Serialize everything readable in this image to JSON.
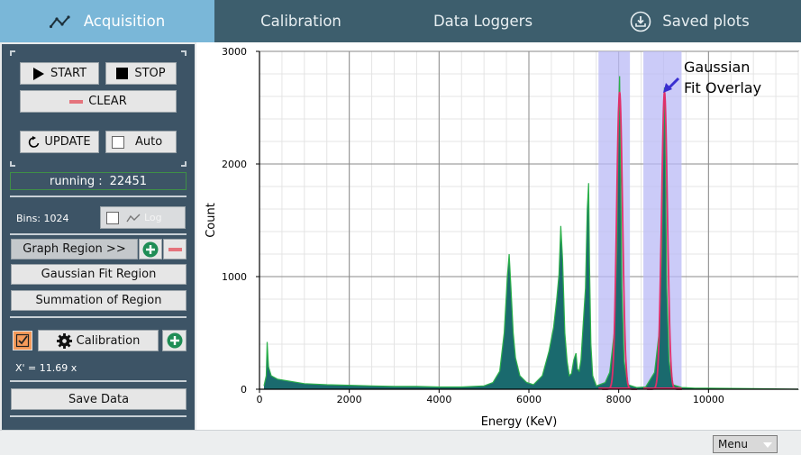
{
  "tabs": [
    {
      "label": "Acquisition",
      "icon": "chart-line-icon",
      "active": true
    },
    {
      "label": "Calibration",
      "active": false
    },
    {
      "label": "Data Loggers",
      "active": false
    },
    {
      "label": "Saved plots",
      "icon": "download-icon",
      "active": false
    }
  ],
  "sidebar": {
    "start_label": "START",
    "stop_label": "STOP",
    "clear_label": "CLEAR",
    "update_label": "UPDATE",
    "auto_label": "Auto",
    "running_label": "running :",
    "running_value": "22451",
    "bins_label": "Bins: 1024",
    "log_label": "Log",
    "graph_region_label": "Graph Region >>",
    "gaussian_fit_label": "Gaussian Fit Region",
    "summation_label": "Summation of Region",
    "calibration_label": "Calibration",
    "calibration_checked": true,
    "calibration_formula": "X' = 11.69 x",
    "save_data_label": "Save Data"
  },
  "annotation": {
    "line1": "Gaussian",
    "line2": "Fit Overlay"
  },
  "menu": {
    "selected": "Menu"
  },
  "colors": {
    "tab_bar": "#3d5e6d",
    "tab_active": "#7ab7d8",
    "sidebar": "#3d5466",
    "histogram_fill": "#1a6a6e",
    "histogram_line": "#2bb04a",
    "fit_overlay": "#e0306a",
    "region_fill": "#b9b9f5"
  },
  "chart_data": {
    "type": "area",
    "title": "",
    "xlabel": "Energy (KeV)",
    "ylabel": "Count",
    "xlim": [
      0,
      12000
    ],
    "ylim": [
      0,
      3000
    ],
    "xticks": [
      0,
      2000,
      4000,
      6000,
      8000,
      10000
    ],
    "yticks": [
      0,
      1000,
      2000,
      3000
    ],
    "grid": true,
    "series": [
      {
        "x": [
          100,
          150,
          170,
          200,
          260,
          400,
          700,
          1000,
          1500,
          2000,
          2500,
          3000,
          3500,
          4000,
          4500,
          5000,
          5200,
          5350,
          5450,
          5520,
          5560,
          5600,
          5650,
          5700,
          5800,
          5950,
          6100,
          6300,
          6450,
          6550,
          6620,
          6670,
          6710,
          6750,
          6800,
          6850,
          6900,
          6950,
          7000,
          7050,
          7080,
          7120,
          7160,
          7200,
          7260,
          7300,
          7330,
          7350,
          7380,
          7420,
          7500,
          7700,
          7800,
          7900,
          7960,
          8000,
          8020,
          8040,
          8070,
          8120,
          8200,
          8400,
          8600,
          8800,
          8900,
          8960,
          9000,
          9020,
          9040,
          9070,
          9120,
          9200,
          9400,
          9700,
          10000,
          11000,
          12000
        ],
        "y": [
          30,
          120,
          420,
          200,
          120,
          90,
          70,
          50,
          40,
          35,
          30,
          25,
          25,
          20,
          20,
          30,
          60,
          160,
          500,
          1000,
          1200,
          900,
          500,
          280,
          120,
          60,
          40,
          120,
          340,
          550,
          800,
          1020,
          1450,
          1150,
          500,
          250,
          120,
          140,
          260,
          320,
          180,
          160,
          260,
          520,
          900,
          1600,
          1830,
          1100,
          400,
          120,
          30,
          60,
          150,
          500,
          1250,
          2500,
          2780,
          2000,
          900,
          250,
          40,
          15,
          20,
          150,
          500,
          1250,
          2500,
          2680,
          2000,
          900,
          250,
          40,
          15,
          10,
          10,
          5,
          0
        ]
      }
    ],
    "regions": [
      [
        7550,
        8250
      ],
      [
        8550,
        9400
      ]
    ],
    "fits": [
      {
        "center": 8020,
        "amplitude": 2640,
        "sigma": 65
      },
      {
        "center": 9020,
        "amplitude": 2640,
        "sigma": 65
      }
    ]
  }
}
